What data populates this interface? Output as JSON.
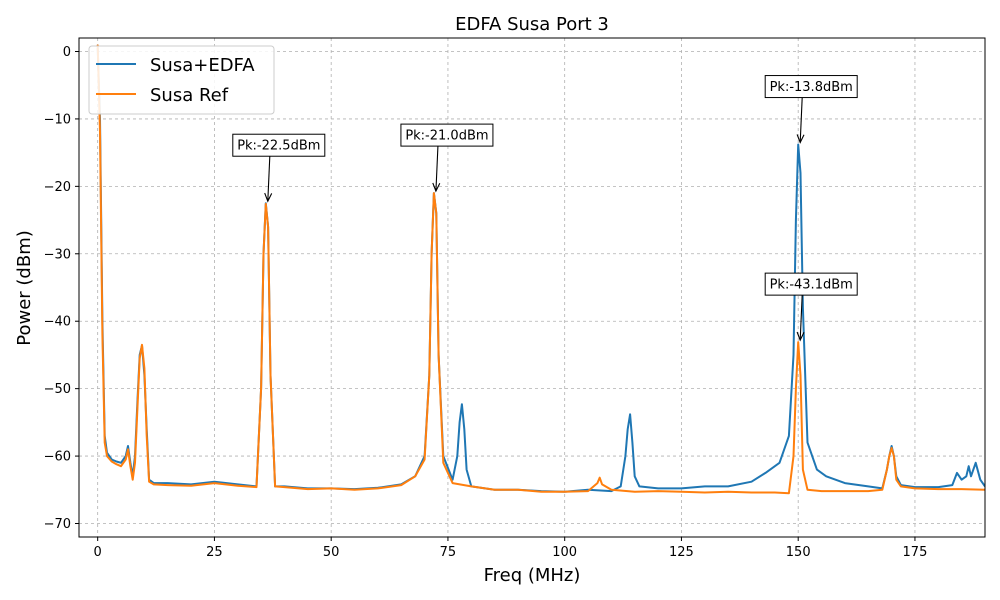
{
  "chart_data": {
    "type": "line",
    "title": "EDFA Susa Port 3",
    "xlabel": "Freq (MHz)",
    "ylabel": "Power (dBm)",
    "xlim": [
      -4,
      190
    ],
    "ylim": [
      -72,
      2
    ],
    "xticks": [
      0,
      25,
      50,
      75,
      100,
      125,
      150,
      175
    ],
    "yticks": [
      0,
      -10,
      -20,
      -30,
      -40,
      -50,
      -60,
      -70
    ],
    "xtick_labels": [
      "0",
      "25",
      "50",
      "75",
      "100",
      "125",
      "150",
      "175"
    ],
    "ytick_labels": [
      "0",
      "−10",
      "−20",
      "−30",
      "−40",
      "−50",
      "−60",
      "−70"
    ],
    "grid": true,
    "legend_position": "top-left",
    "series": [
      {
        "name": "Susa+EDFA",
        "color": "#1f77b4",
        "x": [
          0,
          0.5,
          1,
          1.5,
          2,
          3,
          4,
          5,
          6,
          6.5,
          7,
          7.5,
          8,
          8.5,
          9,
          9.5,
          10,
          10.5,
          11,
          12,
          15,
          20,
          25,
          30,
          34,
          35,
          35.5,
          36,
          36.5,
          37,
          38,
          40,
          45,
          50,
          55,
          60,
          65,
          68,
          70,
          71,
          71.5,
          72,
          72.5,
          73,
          74,
          76,
          77,
          77.5,
          78,
          78.5,
          79,
          80,
          85,
          90,
          95,
          100,
          105,
          110,
          112,
          113,
          113.5,
          114,
          114.5,
          115,
          116,
          120,
          125,
          130,
          135,
          140,
          143,
          146,
          148,
          149,
          149.5,
          150,
          150.5,
          151,
          152,
          154,
          156,
          160,
          165,
          168,
          169,
          169.5,
          170,
          170.5,
          171,
          172,
          175,
          180,
          183,
          184,
          185,
          186,
          186.5,
          187,
          188,
          189,
          190
        ],
        "y": [
          0.5,
          -10,
          -40,
          -57,
          -59.5,
          -60.5,
          -60.8,
          -61,
          -60,
          -58.5,
          -61,
          -63,
          -60,
          -52,
          -45,
          -43.6,
          -48,
          -56,
          -63.5,
          -64,
          -64,
          -64.2,
          -63.8,
          -64.2,
          -64.5,
          -50,
          -30,
          -22.5,
          -26,
          -48,
          -64.5,
          -64.5,
          -64.8,
          -64.8,
          -64.9,
          -64.7,
          -64.2,
          -63,
          -60,
          -48,
          -30,
          -21,
          -24,
          -45,
          -60,
          -63.5,
          -60,
          -55,
          -52.3,
          -56,
          -62,
          -64.5,
          -65,
          -65,
          -65.2,
          -65.3,
          -65,
          -65.2,
          -64.5,
          -60,
          -56,
          -53.8,
          -58,
          -63,
          -64.5,
          -64.8,
          -64.8,
          -64.5,
          -64.5,
          -63.8,
          -62.5,
          -61,
          -57,
          -45,
          -25,
          -13.8,
          -18,
          -38,
          -58,
          -62,
          -63,
          -64,
          -64.5,
          -64.8,
          -62,
          -60,
          -58.5,
          -60,
          -63,
          -64.3,
          -64.6,
          -64.6,
          -64.3,
          -62.5,
          -63.5,
          -63,
          -61.5,
          -63,
          -61,
          -63.5,
          -64.5
        ]
      },
      {
        "name": "Susa Ref",
        "color": "#ff7f0e",
        "x": [
          0,
          0.5,
          1,
          1.5,
          2,
          3,
          4,
          5,
          6,
          6.5,
          7,
          7.5,
          8,
          8.5,
          9,
          9.5,
          10,
          10.5,
          11,
          12,
          15,
          20,
          25,
          30,
          34,
          35,
          35.5,
          36,
          36.5,
          37,
          38,
          40,
          45,
          50,
          55,
          60,
          65,
          68,
          70,
          71,
          71.5,
          72,
          72.5,
          73,
          74,
          76,
          80,
          85,
          90,
          95,
          100,
          105,
          107,
          107.5,
          108,
          110,
          115,
          120,
          125,
          130,
          135,
          140,
          145,
          148,
          149,
          149.5,
          150,
          150.5,
          151,
          152,
          155,
          160,
          165,
          168,
          169,
          169.5,
          170,
          170.5,
          171,
          172,
          175,
          180,
          185,
          190
        ],
        "y": [
          1,
          -12,
          -42,
          -58,
          -60,
          -60.8,
          -61.2,
          -61.5,
          -60.5,
          -59,
          -61.5,
          -63.5,
          -61,
          -53,
          -45.5,
          -43.5,
          -47,
          -57,
          -63.8,
          -64.2,
          -64.3,
          -64.4,
          -64,
          -64.4,
          -64.6,
          -50,
          -30,
          -22.6,
          -26,
          -48,
          -64.5,
          -64.6,
          -64.9,
          -64.8,
          -65,
          -64.8,
          -64.3,
          -63,
          -60.5,
          -48,
          -30,
          -21,
          -24,
          -45,
          -61,
          -64,
          -64.5,
          -65,
          -65,
          -65.3,
          -65.3,
          -65.2,
          -64,
          -63.2,
          -64.2,
          -65,
          -65.3,
          -65.2,
          -65.3,
          -65.4,
          -65.3,
          -65.4,
          -65.4,
          -65.5,
          -60,
          -50,
          -43.1,
          -48,
          -62,
          -65,
          -65.2,
          -65.2,
          -65.2,
          -65,
          -62,
          -60,
          -58.8,
          -60,
          -63.5,
          -64.5,
          -64.8,
          -64.9,
          -64.9,
          -65
        ]
      }
    ],
    "annotations": [
      {
        "text": "Pk:-22.5dBm",
        "x": 36,
        "y": -22.5,
        "label_x": 36,
        "label_y": -13.9
      },
      {
        "text": "Pk:-21.0dBm",
        "x": 72,
        "y": -21.0,
        "label_x": 72,
        "label_y": -12.4
      },
      {
        "text": "Pk:-13.8dBm",
        "x": 150,
        "y": -13.8,
        "label_x": 150,
        "label_y": -5.2
      },
      {
        "text": "Pk:-43.1dBm",
        "x": 150,
        "y": -43.1,
        "label_x": 150,
        "label_y": -34.5
      }
    ]
  }
}
